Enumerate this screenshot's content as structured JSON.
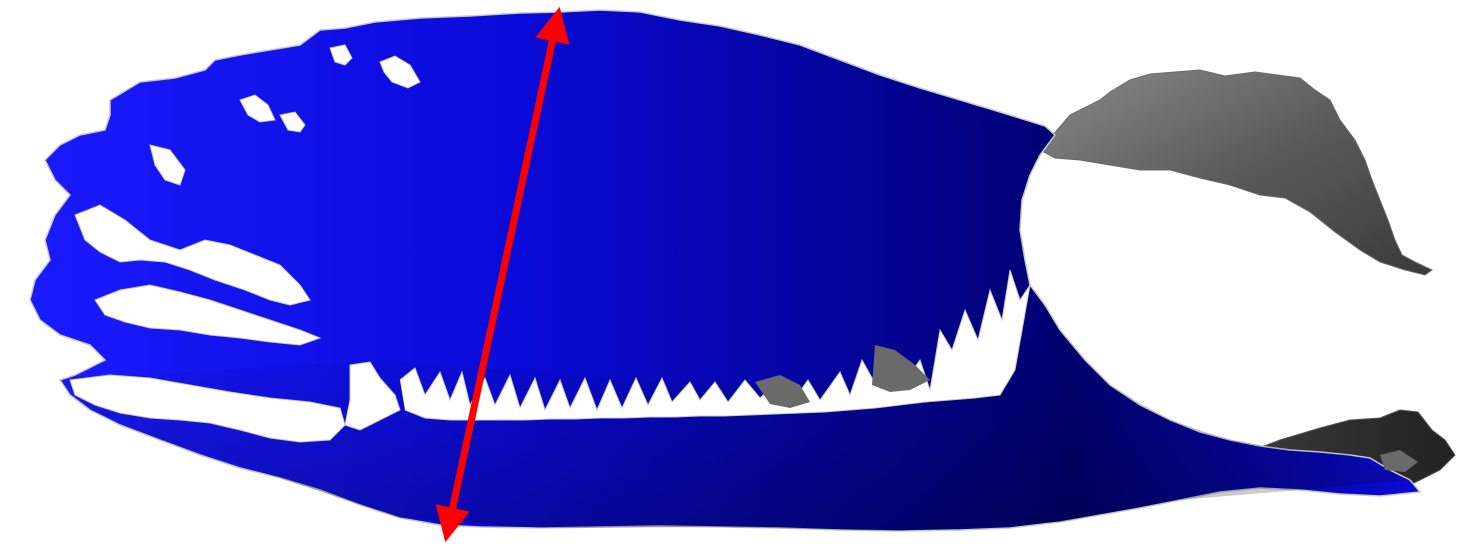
{
  "scene": {
    "subject": "3d-fish-surface-render",
    "colors": {
      "background": "#ffffff",
      "body_light": "#1a1aff",
      "body_mid": "#0a0ad8",
      "body_dark": "#000070",
      "fin_light": "#8a8a8a",
      "fin_dark": "#3a3a3a",
      "measure_arrow": "#ff0000"
    },
    "annotation": {
      "type": "double-headed-arrow",
      "meaning": "body-depth-measurement"
    }
  }
}
